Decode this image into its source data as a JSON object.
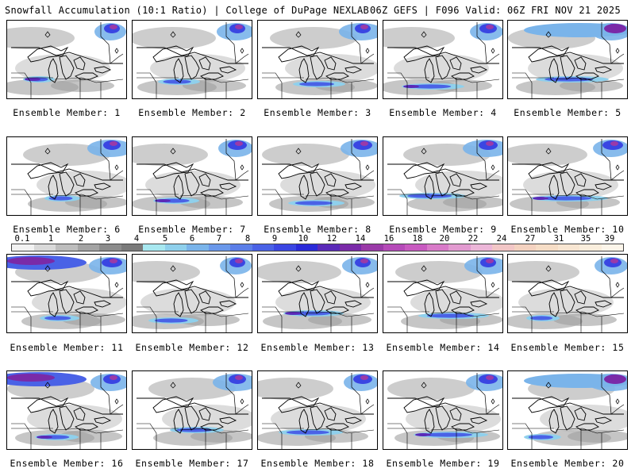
{
  "header": {
    "left": "Snowfall Accumulation (10:1 Ratio) | College of DuPage NEXLAB",
    "right": "06Z GEFS | F096 Valid: 06Z FRI NOV 21 2025"
  },
  "caption_prefix": "Ensemble Member:",
  "members": [
    "1",
    "2",
    "3",
    "4",
    "5",
    "6",
    "7",
    "8",
    "9",
    "10",
    "11",
    "12",
    "13",
    "14",
    "15",
    "16",
    "17",
    "18",
    "19",
    "20"
  ],
  "colorbar": {
    "labels": [
      "0.1",
      "1",
      "2",
      "3",
      "4",
      "5",
      "6",
      "7",
      "8",
      "9",
      "10",
      "12",
      "14",
      "16",
      "18",
      "20",
      "22",
      "24",
      "27",
      "31",
      "35",
      "39"
    ],
    "colors": [
      "#f2f2f2",
      "#d9d9d9",
      "#bdbdbd",
      "#a3a3a3",
      "#8c8c8c",
      "#7a7a7a",
      "#a8e8f0",
      "#8fd0ec",
      "#7ab4ea",
      "#6a98ea",
      "#5b7ee8",
      "#4a62e6",
      "#3a46e2",
      "#2a2ad8",
      "#5a2ab8",
      "#7a2aa8",
      "#9a3aa8",
      "#b54ab8",
      "#c85ac0",
      "#d87ac8",
      "#e29ad0",
      "#ecb6d8",
      "#f2c6c6",
      "#f4d2c0",
      "#f6ddc6",
      "#f8e6d2",
      "#faeedd",
      "#fcf5ea"
    ]
  }
}
